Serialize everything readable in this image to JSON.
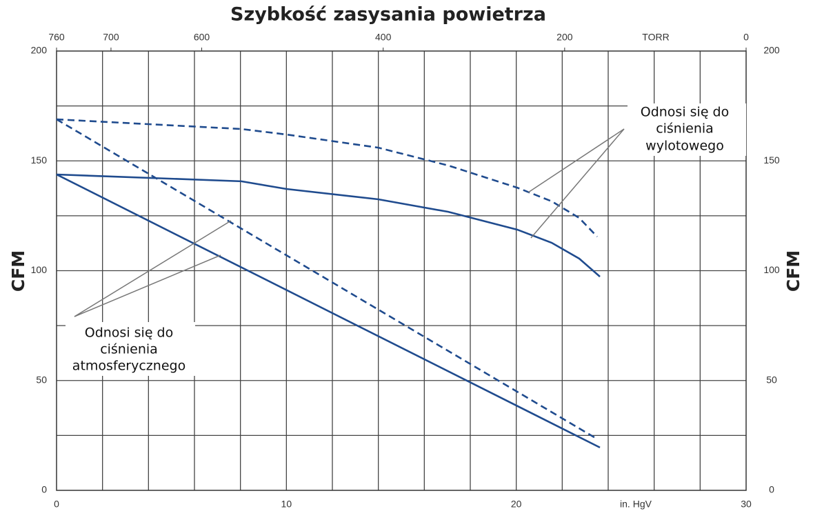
{
  "chart_data": {
    "type": "line",
    "title": "Szybkość zasysania powietrza",
    "xlabel": "in. HgV",
    "x2label": "TORR",
    "ylabel": "CFM",
    "y2label": "CFM",
    "xlim": [
      0,
      30
    ],
    "xticks": [
      0,
      10,
      20,
      30
    ],
    "x2lim": [
      760,
      0
    ],
    "x2ticks": [
      760,
      700,
      600,
      400,
      200,
      0
    ],
    "ylim": [
      0,
      200
    ],
    "yticks": [
      0,
      50,
      100,
      150,
      200
    ],
    "y2lim": [
      0,
      200
    ],
    "y2ticks": [
      0,
      50,
      100,
      150,
      200
    ],
    "grid": true,
    "xgrid": [
      2,
      4,
      6,
      8,
      10,
      12,
      14,
      16,
      18,
      20,
      22,
      24,
      26,
      28
    ],
    "ygrid": [
      25,
      50,
      75,
      100,
      125,
      150,
      175
    ],
    "series": [
      {
        "color": "#1f4b8e",
        "dash": false,
        "x": [
          0,
          23.64
        ],
        "values": [
          143.8,
          19.5
        ]
      },
      {
        "color": "#1f4b8e",
        "dash": true,
        "x": [
          0,
          23.5
        ],
        "values": [
          168.9,
          23.5
        ]
      },
      {
        "color": "#1f4b8e",
        "dash": false,
        "x": [
          0,
          8.04,
          10,
          14,
          17.04,
          20.04,
          21.54,
          22.74,
          23.64
        ],
        "values": [
          143.8,
          140.7,
          137.2,
          132.5,
          126.8,
          118.7,
          112.7,
          105.5,
          97.3
        ]
      },
      {
        "color": "#1f4b8e",
        "dash": true,
        "x": [
          0,
          8.04,
          10,
          14,
          17.04,
          20.04,
          21.54,
          22.74,
          23.52
        ],
        "values": [
          168.9,
          164.5,
          162.0,
          156.0,
          147.9,
          137.8,
          131.6,
          124.0,
          115.5
        ]
      }
    ],
    "annotations": [
      {
        "text": [
          "Odnosi się do",
          "ciśnienia",
          "wylotowego"
        ]
      },
      {
        "text": [
          "Odnosi się do",
          "ciśnienia",
          "atmosferycznego"
        ]
      }
    ]
  }
}
